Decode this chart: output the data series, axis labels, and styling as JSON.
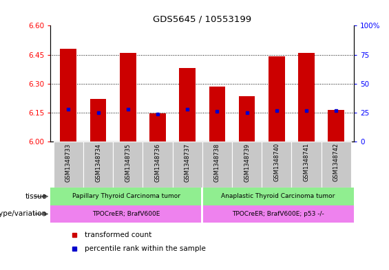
{
  "title": "GDS5645 / 10553199",
  "samples": [
    "GSM1348733",
    "GSM1348734",
    "GSM1348735",
    "GSM1348736",
    "GSM1348737",
    "GSM1348738",
    "GSM1348739",
    "GSM1348740",
    "GSM1348741",
    "GSM1348742"
  ],
  "transformed_counts": [
    6.48,
    6.22,
    6.46,
    6.145,
    6.38,
    6.285,
    6.235,
    6.44,
    6.46,
    6.165
  ],
  "percentile_ranks": [
    28,
    25,
    28,
    24,
    28,
    26,
    25,
    27,
    27,
    27
  ],
  "ylim_left": [
    6.0,
    6.6
  ],
  "ylim_right": [
    0,
    100
  ],
  "yticks_left": [
    6.0,
    6.15,
    6.3,
    6.45,
    6.6
  ],
  "yticks_right": [
    0,
    25,
    50,
    75,
    100
  ],
  "bar_color": "#cc0000",
  "marker_color": "#0000cc",
  "tissue_labels": [
    "Papillary Thyroid Carcinoma tumor",
    "Anaplastic Thyroid Carcinoma tumor"
  ],
  "tissue_color": "#90EE90",
  "genotype_labels": [
    "TPOCreER; BrafV600E",
    "TPOCreER; BrafV600E; p53 -/-"
  ],
  "genotype_color": "#EE82EE",
  "tissue_split": 5,
  "legend_items": [
    "transformed count",
    "percentile rank within the sample"
  ],
  "legend_colors": [
    "#cc0000",
    "#0000cc"
  ],
  "row_labels": [
    "tissue",
    "genotype/variation"
  ],
  "xticklabel_bg": "#c8c8c8"
}
